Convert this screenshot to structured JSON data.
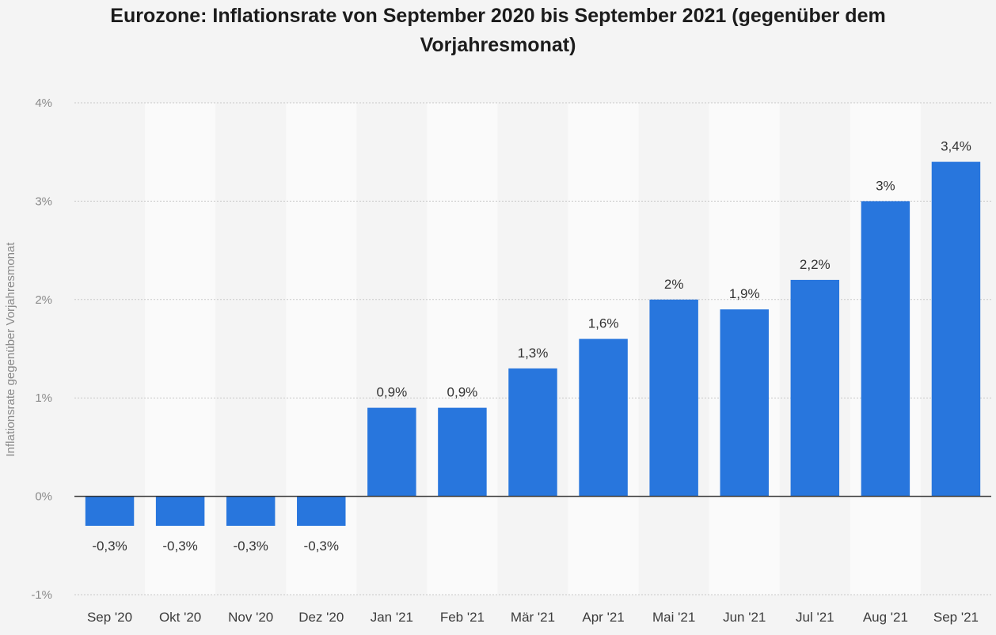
{
  "title_line1": "Eurozone: Inflationsrate von September 2020 bis September 2021 (gegenüber dem",
  "title_line2": "Vorjahresmonat)",
  "chart_data": {
    "type": "bar",
    "title": "Eurozone: Inflationsrate von September 2020 bis September 2021 (gegenüber dem Vorjahresmonat)",
    "xlabel": "",
    "ylabel": "Inflationsrate gegenüber Vorjahresmonat",
    "categories": [
      "Sep '20",
      "Okt '20",
      "Nov '20",
      "Dez '20",
      "Jan '21",
      "Feb '21",
      "Mär '21",
      "Apr '21",
      "Mai '21",
      "Jun '21",
      "Jul '21",
      "Aug '21",
      "Sep '21"
    ],
    "values": [
      -0.3,
      -0.3,
      -0.3,
      -0.3,
      0.9,
      0.9,
      1.3,
      1.6,
      2,
      1.9,
      2.2,
      3,
      3.4
    ],
    "value_labels": [
      "-0,3%",
      "-0,3%",
      "-0,3%",
      "-0,3%",
      "0,9%",
      "0,9%",
      "1,3%",
      "1,6%",
      "2%",
      "1,9%",
      "2,2%",
      "3%",
      "3,4%"
    ],
    "yticks": [
      -1,
      0,
      1,
      2,
      3,
      4
    ],
    "ytick_labels": [
      "-1%",
      "0%",
      "1%",
      "2%",
      "3%",
      "4%"
    ],
    "ylim": [
      -1,
      4
    ],
    "grid": true,
    "bar_color": "#2876dd",
    "band_color": "#fafafa",
    "background_color": "#f4f4f4"
  }
}
